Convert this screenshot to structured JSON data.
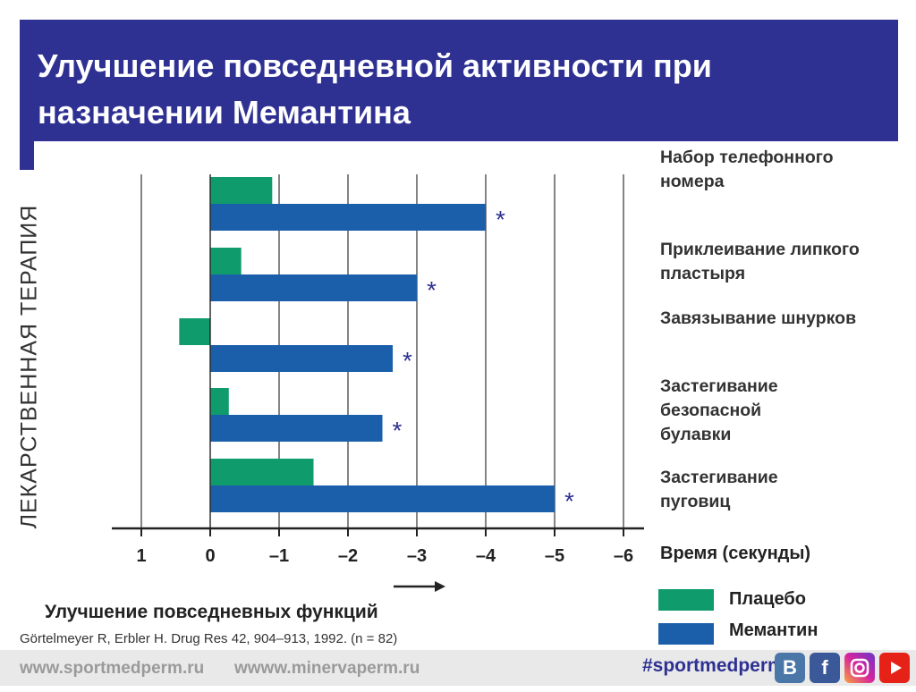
{
  "title": "Улучшение повседневной активности при назначении Мемантина",
  "vertical_label": "ЛЕКАРСТВЕННАЯ ТЕРАПИЯ",
  "chart_data": {
    "type": "bar",
    "orientation": "horizontal",
    "categories": [
      "Набор телефонного номера",
      "Приклеивание липкого пластыря",
      "Завязывание шнурков",
      "Застегивание безопасной булавки",
      "Застегивание пуговиц"
    ],
    "series": [
      {
        "name": "Плацебо",
        "color": "#0f9b6c",
        "values": [
          -0.9,
          -0.45,
          0.45,
          -0.27,
          -1.5
        ]
      },
      {
        "name": "Мемантин",
        "color": "#1b5faa",
        "values": [
          -4.0,
          -3.0,
          -2.65,
          -2.5,
          -5.0
        ]
      }
    ],
    "significance_marker": "*",
    "tick_values": [
      1,
      0,
      -1,
      -2,
      -3,
      -4,
      -5,
      -6
    ],
    "tick_labels": [
      "1",
      "0",
      "–1",
      "–2",
      "–3",
      "–4",
      "–5",
      "–6"
    ],
    "xlabel": "Время (секунды)",
    "xlim": [
      1,
      -6
    ],
    "grid": true,
    "legend_position": "bottom-right"
  },
  "bottom_label": "Улучшение повседневных функций",
  "citation": "Görtelmeyer R, Erbler H. Drug Res 42, 904–913, 1992. (n = 82)",
  "footer": {
    "link1": "www.sportmedperm.ru",
    "link2": "wwww.minervaperm.ru",
    "hashtag": "#sportmedperm",
    "social": [
      "vk-icon",
      "facebook-icon",
      "instagram-icon",
      "youtube-icon"
    ]
  }
}
